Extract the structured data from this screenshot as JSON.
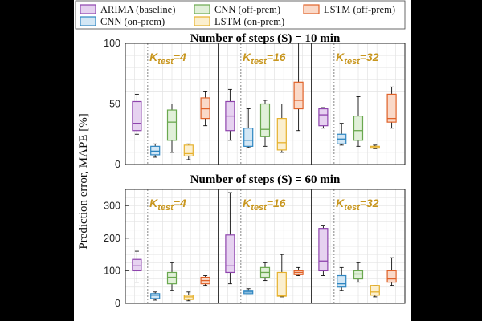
{
  "chart_data": {
    "type": "box",
    "ylabel": "Prediction error, MAPE [%]",
    "series": [
      {
        "name": "ARIMA (baseline)",
        "color": "#8E44AD",
        "fill": "#E6D2F0"
      },
      {
        "name": "CNN (on-prem)",
        "color": "#2E86C1",
        "fill": "#D3E7F5"
      },
      {
        "name": "CNN (off-prem)",
        "color": "#6AA84F",
        "fill": "#E1F0D9"
      },
      {
        "name": "LSTM (on-prem)",
        "color": "#E6B12D",
        "fill": "#FBEFCF"
      },
      {
        "name": "LSTM (off-prem)",
        "color": "#E0632A",
        "fill": "#FAD9C8"
      }
    ],
    "groups": [
      {
        "k_prefix": "K",
        "k_sub": "test",
        "k_value": "=4"
      },
      {
        "k_prefix": "K",
        "k_sub": "test",
        "k_value": "=16"
      },
      {
        "k_prefix": "K",
        "k_sub": "test",
        "k_value": "=32"
      }
    ],
    "panels": [
      {
        "title": "Number of steps (S) = 10 min",
        "ylim": [
          0,
          100
        ],
        "yticks": [
          0,
          50,
          100
        ],
        "boxes": [
          [
            {
              "min": 25,
              "q1": 28,
              "median": 34,
              "q3": 52,
              "max": 58
            },
            {
              "min": 6,
              "q1": 8,
              "median": 11,
              "q3": 15,
              "max": 17
            },
            {
              "min": 10,
              "q1": 20,
              "median": 35,
              "q3": 45,
              "max": 50
            },
            {
              "min": 4,
              "q1": 7,
              "median": 9,
              "q3": 16,
              "max": 17
            },
            {
              "min": 32,
              "q1": 38,
              "median": 46,
              "q3": 55,
              "max": 60
            }
          ],
          [
            {
              "min": 20,
              "q1": 28,
              "median": 40,
              "q3": 52,
              "max": 62
            },
            {
              "min": 14,
              "q1": 15,
              "median": 20,
              "q3": 30,
              "max": 46
            },
            {
              "min": 15,
              "q1": 23,
              "median": 29,
              "q3": 50,
              "max": 53
            },
            {
              "min": 10,
              "q1": 12,
              "median": 18,
              "q3": 38,
              "max": 50
            },
            {
              "min": 28,
              "q1": 46,
              "median": 53,
              "q3": 68,
              "max": 100
            }
          ],
          [
            {
              "min": 30,
              "q1": 32,
              "median": 41,
              "q3": 46,
              "max": 47
            },
            {
              "min": 16,
              "q1": 17,
              "median": 21,
              "q3": 25,
              "max": 34
            },
            {
              "min": 15,
              "q1": 20,
              "median": 28,
              "q3": 40,
              "max": 56
            },
            {
              "min": 13,
              "q1": 13.5,
              "median": 14,
              "q3": 15,
              "max": 16
            },
            {
              "min": 30,
              "q1": 35,
              "median": 38,
              "q3": 58,
              "max": 64
            }
          ]
        ]
      },
      {
        "title": "Number of steps (S) = 60 min",
        "ylim": [
          0,
          350
        ],
        "yticks": [
          0,
          100,
          200,
          300
        ],
        "boxes": [
          [
            {
              "min": 65,
              "q1": 100,
              "median": 115,
              "q3": 135,
              "max": 160
            },
            {
              "min": 10,
              "q1": 15,
              "median": 25,
              "q3": 30,
              "max": 35
            },
            {
              "min": 40,
              "q1": 60,
              "median": 80,
              "q3": 95,
              "max": 125
            },
            {
              "min": 8,
              "q1": 12,
              "median": 20,
              "q3": 25,
              "max": 35
            },
            {
              "min": 55,
              "q1": 60,
              "median": 70,
              "q3": 80,
              "max": 85
            }
          ],
          [
            {
              "min": 60,
              "q1": 95,
              "median": 115,
              "q3": 210,
              "max": 340
            },
            {
              "min": 30,
              "q1": 30,
              "median": 35,
              "q3": 40,
              "max": 45
            },
            {
              "min": 70,
              "q1": 80,
              "median": 95,
              "q3": 110,
              "max": 125
            },
            {
              "min": 20,
              "q1": 22,
              "median": 25,
              "q3": 95,
              "max": 150
            },
            {
              "min": 85,
              "q1": 88,
              "median": 95,
              "q3": 100,
              "max": 110
            }
          ],
          [
            {
              "min": 85,
              "q1": 100,
              "median": 130,
              "q3": 230,
              "max": 240
            },
            {
              "min": 40,
              "q1": 50,
              "median": 60,
              "q3": 85,
              "max": 110
            },
            {
              "min": 65,
              "q1": 75,
              "median": 90,
              "q3": 100,
              "max": 125
            },
            {
              "min": 20,
              "q1": 25,
              "median": 35,
              "q3": 55,
              "max": 55
            },
            {
              "min": 55,
              "q1": 65,
              "median": 75,
              "q3": 100,
              "max": 140
            }
          ]
        ]
      }
    ]
  }
}
